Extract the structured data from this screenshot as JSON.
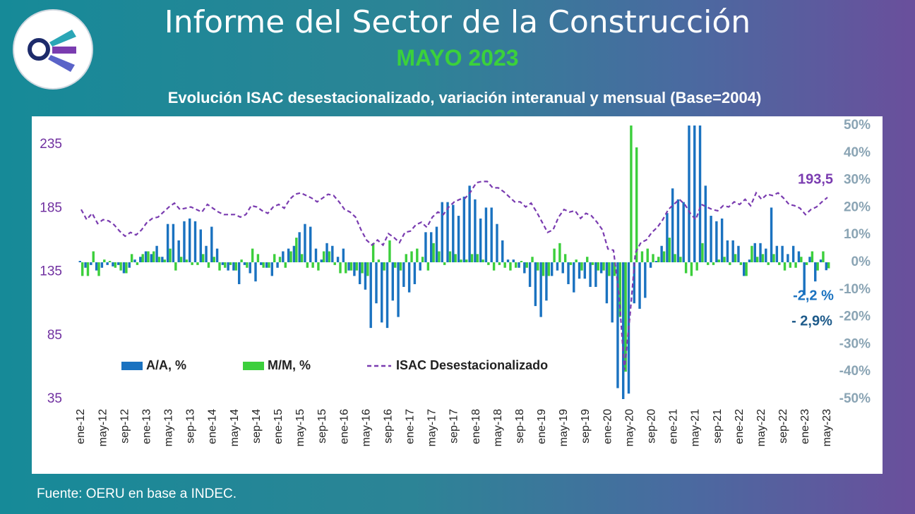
{
  "header": {
    "title": "Informe del Sector de la Construcción",
    "subtitle": "MAYO 2023"
  },
  "footer": {
    "source": "Fuente: OERU  en base a INDEC."
  },
  "chart_data": {
    "type": "combo",
    "title": "Evolución ISAC desestacionalizado, variación interanual y mensual (Base=2004)",
    "categories": [
      "ene-12",
      null,
      null,
      null,
      "may-12",
      null,
      null,
      null,
      "sep-12",
      null,
      null,
      null,
      "ene-13",
      null,
      null,
      null,
      "may-13",
      null,
      null,
      null,
      "sep-13",
      null,
      null,
      null,
      "ene-14",
      null,
      null,
      null,
      "may-14",
      null,
      null,
      null,
      "sep-14",
      null,
      null,
      null,
      "ene-15",
      null,
      null,
      null,
      "may-15",
      null,
      null,
      null,
      "sep-15",
      null,
      null,
      null,
      "ene-16",
      null,
      null,
      null,
      "may-16",
      null,
      null,
      null,
      "sep-16",
      null,
      null,
      null,
      "ene-17",
      null,
      null,
      null,
      "may-17",
      null,
      null,
      null,
      "sep-17",
      null,
      null,
      null,
      "ene-18",
      null,
      null,
      null,
      "may-18",
      null,
      null,
      null,
      "sep-18",
      null,
      null,
      null,
      "ene-19",
      null,
      null,
      null,
      "may-19",
      null,
      null,
      null,
      "sep-19",
      null,
      null,
      null,
      "ene-20",
      null,
      null,
      null,
      "may-20",
      null,
      null,
      null,
      "sep-20",
      null,
      null,
      null,
      "ene-21",
      null,
      null,
      null,
      "may-21",
      null,
      null,
      null,
      "sep-21",
      null,
      null,
      null,
      "ene-22",
      null,
      null,
      null,
      "may-22",
      null,
      null,
      null,
      "sep-22",
      null,
      null,
      null,
      "ene-23",
      null,
      null,
      null,
      "may-23"
    ],
    "series": [
      {
        "name": "A/A, %",
        "type": "bar",
        "axis": "y2",
        "color": "#1a72c0",
        "values": [
          0.5,
          -2,
          -1,
          -3,
          -2,
          -1,
          -1.5,
          -1,
          -4,
          -2,
          1,
          2,
          4,
          3,
          6,
          2,
          14,
          14,
          8,
          15,
          16,
          15,
          12,
          6,
          13,
          5,
          -1,
          -3,
          -3,
          -8,
          -1,
          -4,
          -7,
          -1,
          -2,
          -5,
          -2,
          4,
          5,
          6,
          11,
          14,
          13,
          5,
          1,
          7,
          6,
          2,
          5,
          -3,
          -5,
          -8,
          -10,
          -24,
          -15,
          -22,
          -24,
          -14,
          -20,
          -9,
          -11,
          -8,
          -3,
          11,
          11,
          13,
          22,
          22,
          21,
          17,
          24,
          28,
          23,
          16,
          20,
          20,
          14,
          8,
          1,
          1,
          -2,
          -4,
          -9,
          -16,
          -20,
          -14,
          -5,
          -3,
          -4,
          -8,
          -11,
          -6,
          -6,
          -9,
          -9,
          -4,
          -15,
          -22,
          -46,
          -50,
          -48,
          -15,
          -17,
          -13,
          -2,
          0.5,
          6,
          18,
          27,
          23,
          22,
          50,
          50,
          50,
          28,
          17,
          15,
          16,
          8,
          8,
          6,
          -5,
          1,
          7,
          7,
          5,
          20,
          6,
          6,
          3,
          6,
          4,
          -12,
          2,
          -7,
          1,
          -2.9
        ]
      },
      {
        "name": "M/M, %",
        "type": "bar",
        "axis": "y2",
        "color": "#3ccf3c",
        "values": [
          -5,
          -5,
          4,
          -5,
          1,
          0.5,
          -2,
          -3,
          -4,
          3,
          -1,
          3,
          4,
          4,
          2,
          1,
          5,
          -3,
          2,
          1,
          -1,
          -1,
          3,
          -2,
          2,
          -3,
          -2,
          -1,
          -3,
          1,
          -2,
          5,
          3,
          -2,
          -2,
          3,
          2,
          -2,
          4,
          9,
          3,
          -2,
          -2,
          -3,
          4,
          4,
          -1,
          -4,
          -4,
          -3,
          -3,
          -4,
          -5,
          7,
          1,
          -3,
          8,
          -2,
          -3,
          3,
          4,
          5,
          2,
          -3,
          7,
          4,
          -1,
          4,
          3,
          1,
          1,
          3,
          3,
          1,
          -1,
          -3,
          -1,
          -2,
          -3,
          -2,
          0.5,
          -2,
          2,
          -3,
          -5,
          -5,
          5,
          7,
          3,
          -1,
          1,
          -3,
          2,
          -1,
          -3,
          -3,
          -5,
          -5,
          -20,
          -40,
          50,
          42,
          4,
          5,
          3,
          2,
          4,
          9,
          3,
          2,
          -4,
          -5,
          -3,
          7,
          -1,
          -1,
          1,
          2,
          -1,
          3,
          -1,
          -5,
          6,
          2,
          3,
          -1,
          3,
          -1,
          -3,
          -2,
          -2,
          2,
          -1,
          4,
          -3,
          4,
          -2.2
        ]
      },
      {
        "name": "ISAC Desestacionalizado",
        "type": "line",
        "axis": "y",
        "color": "#7a3cb0",
        "dashed": true,
        "values": [
          184,
          176,
          181,
          173,
          176,
          175,
          172,
          167,
          163,
          166,
          164,
          168,
          174,
          177,
          178,
          182,
          186,
          189,
          184,
          185,
          186,
          184,
          182,
          188,
          185,
          182,
          180,
          180,
          180,
          178,
          180,
          187,
          186,
          183,
          181,
          186,
          188,
          185,
          192,
          196,
          197,
          195,
          193,
          190,
          193,
          196,
          195,
          190,
          184,
          182,
          178,
          168,
          160,
          156,
          160,
          156,
          165,
          162,
          158,
          166,
          167,
          172,
          174,
          170,
          178,
          182,
          180,
          186,
          190,
          192,
          193,
          198,
          205,
          206,
          206,
          201,
          201,
          198,
          194,
          190,
          190,
          186,
          189,
          182,
          174,
          166,
          168,
          178,
          184,
          182,
          183,
          177,
          181,
          179,
          174,
          168,
          153,
          152,
          118,
          58,
          100,
          150,
          158,
          160,
          166,
          170,
          176,
          184,
          188,
          192,
          188,
          181,
          176,
          188,
          186,
          184,
          183,
          187,
          186,
          190,
          188,
          192,
          187,
          197,
          192,
          196,
          195,
          197,
          193,
          188,
          187,
          185,
          180,
          184,
          186,
          190,
          193.5
        ]
      }
    ],
    "annotations": [
      "-2,2 %",
      "- 2,9%",
      "193,5"
    ],
    "ylim": [
      35,
      250
    ],
    "yticks": [
      35,
      85,
      135,
      185,
      235
    ],
    "y2lim": [
      -50,
      50
    ],
    "y2ticks": [
      {
        "value": -50,
        "label": "-50%"
      },
      {
        "value": -40,
        "label": "-40%"
      },
      {
        "value": -30,
        "label": "-30%"
      },
      {
        "value": -20,
        "label": "-20%"
      },
      {
        "value": -10,
        "label": "-10%"
      },
      {
        "value": 0,
        "label": "0%"
      },
      {
        "value": 10,
        "label": "10%"
      },
      {
        "value": 20,
        "label": "20%"
      },
      {
        "value": 30,
        "label": "30%"
      },
      {
        "value": 40,
        "label": "40%"
      },
      {
        "value": 50,
        "label": "50%"
      }
    ],
    "grid": false,
    "legend": "lower-left"
  }
}
